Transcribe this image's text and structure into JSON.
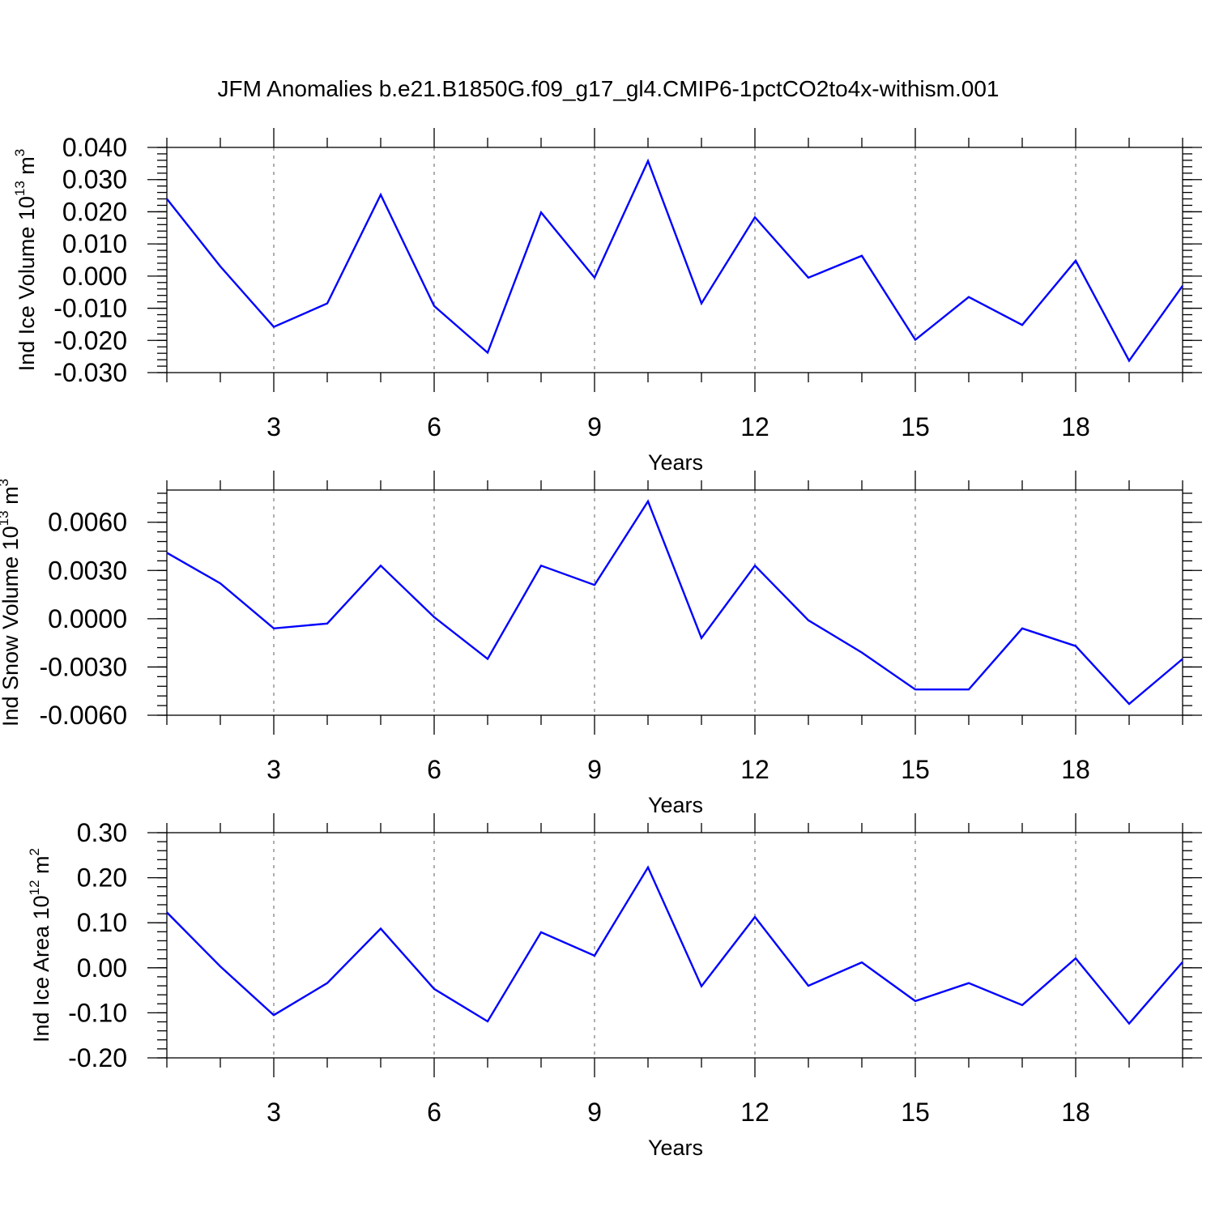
{
  "title": "JFM Anomalies b.e21.B1850G.f09_g17_gl4.CMIP6-1pctCO2to4x-withism.001",
  "line_color": "#0000ff",
  "chart_data": [
    {
      "type": "line",
      "ylabel_main": "Ind Ice Volume 10",
      "ylabel_exp": "13",
      "ylabel_unit": " m",
      "ylabel_unit_exp": "3",
      "xlabel": "Years",
      "xlim": [
        1,
        20
      ],
      "ylim": [
        -0.03,
        0.04
      ],
      "xticks": [
        3,
        6,
        9,
        12,
        15,
        18
      ],
      "yticks": [
        -0.03,
        -0.02,
        -0.01,
        0.0,
        0.01,
        0.02,
        0.03,
        0.04
      ],
      "ytick_labels": [
        "-0.030",
        "-0.020",
        "-0.010",
        "0.000",
        "0.010",
        "0.020",
        "0.030",
        "0.040"
      ],
      "grid": "vertical dashed at x ticks",
      "x": [
        1,
        2,
        3,
        4,
        5,
        6,
        7,
        8,
        9,
        10,
        11,
        12,
        13,
        14,
        15,
        16,
        17,
        18,
        19,
        20
      ],
      "values": [
        0.024,
        0.003,
        -0.0158,
        -0.0085,
        0.0253,
        -0.0093,
        -0.0238,
        0.0198,
        -0.0005,
        0.0358,
        -0.0085,
        0.0183,
        -0.0005,
        0.0063,
        -0.0198,
        -0.0065,
        -0.0152,
        0.0048,
        -0.0263,
        -0.003
      ]
    },
    {
      "type": "line",
      "ylabel_main": "Ind Snow Volume 10",
      "ylabel_exp": "13",
      "ylabel_unit": " m",
      "ylabel_unit_exp": "3",
      "xlabel": "Years",
      "xlim": [
        1,
        20
      ],
      "ylim": [
        -0.006,
        0.008
      ],
      "xticks": [
        3,
        6,
        9,
        12,
        15,
        18
      ],
      "yticks": [
        -0.006,
        -0.003,
        0.0,
        0.003,
        0.006
      ],
      "ytick_labels": [
        "-0.0060",
        "-0.0030",
        "0.0000",
        "0.0030",
        "0.0060"
      ],
      "grid": "vertical dashed at x ticks",
      "x": [
        1,
        2,
        3,
        4,
        5,
        6,
        7,
        8,
        9,
        10,
        11,
        12,
        13,
        14,
        15,
        16,
        17,
        18,
        19,
        20
      ],
      "values": [
        0.0041,
        0.0022,
        -0.0006,
        -0.0003,
        0.0033,
        0.0001,
        -0.0025,
        0.0033,
        0.0021,
        0.0073,
        -0.0012,
        0.0033,
        -0.0001,
        -0.0021,
        -0.0044,
        -0.0044,
        -0.0006,
        -0.0017,
        -0.0053,
        -0.0025
      ]
    },
    {
      "type": "line",
      "ylabel_main": "Ind Ice Area 10",
      "ylabel_exp": "12",
      "ylabel_unit": " m",
      "ylabel_unit_exp": "2",
      "xlabel": "Years",
      "xlim": [
        1,
        20
      ],
      "ylim": [
        -0.2,
        0.3
      ],
      "xticks": [
        3,
        6,
        9,
        12,
        15,
        18
      ],
      "yticks": [
        -0.2,
        -0.1,
        0.0,
        0.1,
        0.2,
        0.3
      ],
      "ytick_labels": [
        "-0.20",
        "-0.10",
        "0.00",
        "0.10",
        "0.20",
        "0.30"
      ],
      "grid": "vertical dashed at x ticks",
      "x": [
        1,
        2,
        3,
        4,
        5,
        6,
        7,
        8,
        9,
        10,
        11,
        12,
        13,
        14,
        15,
        16,
        17,
        18,
        19,
        20
      ],
      "values": [
        0.123,
        0.003,
        -0.105,
        -0.034,
        0.087,
        -0.047,
        -0.119,
        0.079,
        0.027,
        0.223,
        -0.041,
        0.113,
        -0.04,
        0.012,
        -0.074,
        -0.034,
        -0.083,
        0.021,
        -0.124,
        0.013
      ]
    }
  ]
}
